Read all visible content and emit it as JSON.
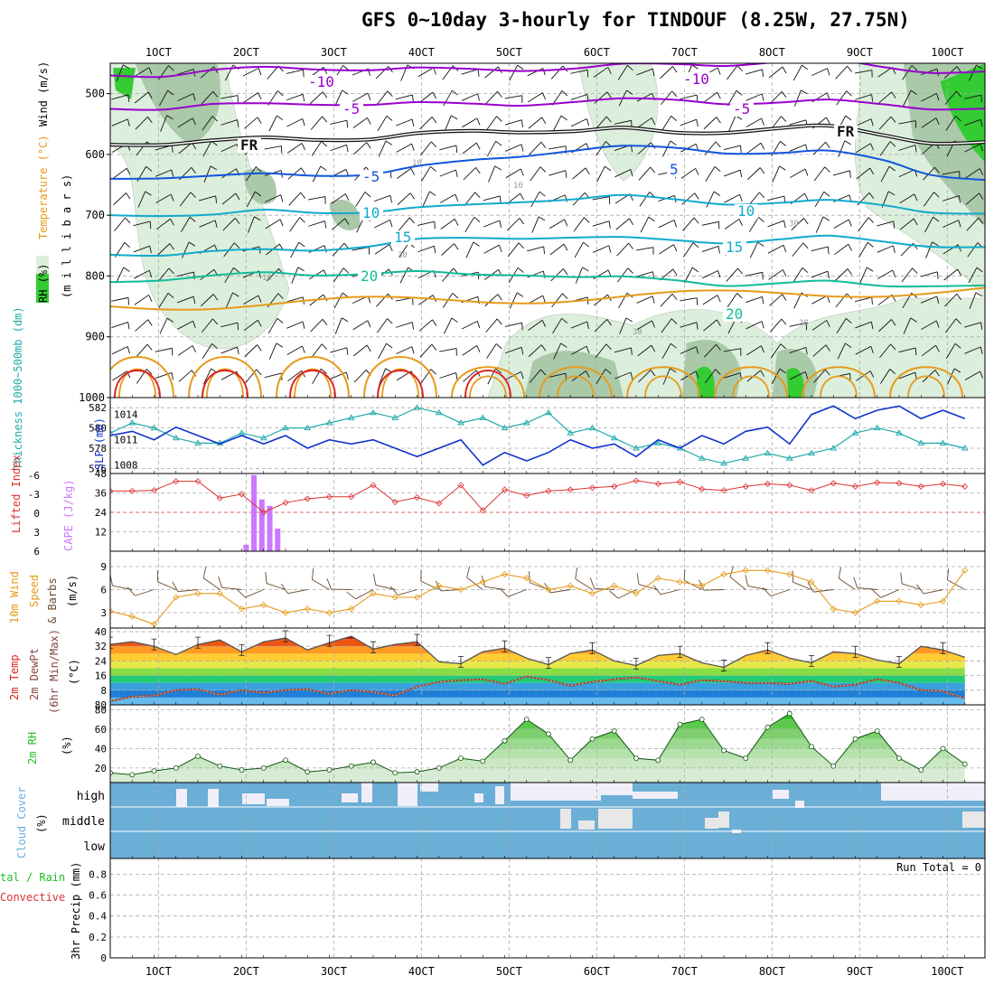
{
  "title": "GFS 0~10day 3-hourly for TINDOUF (8.25W, 27.75N)",
  "colors": {
    "rh_shade_light": "#dcefdc",
    "rh_shade_mid": "#a9c9a9",
    "rh_shade_green": "#33cc33",
    "temp_purple": "#9900cc",
    "temp_blue": "#1155dd",
    "temp_cyan": "#11aacc",
    "temp_teal": "#11bb99",
    "temp_orange": "#e69a1a",
    "temp_red": "#dd2222",
    "slp": "#1133cc",
    "thickness": "#22aaaa",
    "lifted_index": "#dd3333",
    "cape": "#cc77ff",
    "wind_speed": "#e69a1a",
    "dewpoint": "#884444",
    "rh2m": "#22bb22",
    "cloud": "#6baed6",
    "cloud_light": "#f0eef8"
  },
  "chart_data": [
    {
      "type": "line",
      "name_panel": "upper-air",
      "x_ticks": [
        "1OCT",
        "2OCT",
        "3OCT",
        "4OCT",
        "5OCT",
        "6OCT",
        "7OCT",
        "8OCT",
        "9OCT",
        "10OCT"
      ],
      "ylabel": "(m i l l i b a r s)",
      "ylabel_parts": [
        "RH (%)",
        "Temperature (°C)",
        "Wind (m/s)"
      ],
      "y_ticks": [
        500,
        600,
        700,
        800,
        900,
        1000
      ],
      "ylim": [
        450,
        1000
      ],
      "isotherm_labels": [
        "-10",
        "-5",
        "FR",
        "-5",
        "10",
        "15",
        "20",
        "-10",
        "-5",
        "FR",
        "5",
        "10",
        "15",
        "20"
      ],
      "rh_labels": [
        "10",
        "10",
        "30",
        "30",
        "10",
        "30",
        "30"
      ],
      "isotherms": [
        {
          "value": -10,
          "color": "purple",
          "p": [
            470,
            468,
            462,
            460,
            458,
            458,
            460,
            462,
            459,
            457,
            455,
            452,
            450,
            448,
            447,
            455,
            462,
            466
          ]
        },
        {
          "value": -5,
          "color": "purple",
          "p": [
            525,
            522,
            518,
            520,
            516,
            515,
            517,
            519,
            516,
            512,
            512,
            511,
            513,
            515,
            514,
            516,
            522,
            527
          ]
        },
        {
          "value": 0,
          "color": "black",
          "p": [
            584,
            580,
            578,
            576,
            574,
            572,
            568,
            564,
            560,
            560,
            560,
            565,
            560,
            557,
            557,
            567,
            578,
            582
          ]
        },
        {
          "value": 5,
          "color": "blue",
          "p": [
            640,
            635,
            636,
            635,
            633,
            630,
            622,
            612,
            600,
            592,
            590,
            590,
            594,
            598,
            598,
            608,
            630,
            645
          ]
        },
        {
          "value": 10,
          "color": "cyan",
          "p": [
            700,
            697,
            700,
            695,
            694,
            692,
            690,
            685,
            675,
            672,
            671,
            675,
            678,
            680,
            679,
            682,
            692,
            700
          ]
        },
        {
          "value": 15,
          "color": "cyan",
          "p": [
            765,
            762,
            760,
            760,
            756,
            748,
            742,
            740,
            735,
            735,
            740,
            742,
            742,
            740,
            738,
            742,
            748,
            755
          ]
        },
        {
          "value": 20,
          "color": "teal",
          "p": [
            810,
            803,
            800,
            798,
            797,
            793,
            795,
            800,
            795,
            800,
            805,
            808,
            812,
            812,
            812,
            815,
            813,
            818
          ]
        }
      ]
    },
    {
      "type": "line",
      "name_panel": "slp-thickness",
      "x": [
        0,
        0.25,
        0.5,
        0.75,
        1,
        1.25,
        1.5,
        1.75,
        2,
        2.25,
        2.5,
        2.75,
        3,
        3.25,
        3.5,
        3.75,
        4,
        4.25,
        4.5,
        4.75,
        5,
        5.25,
        5.5,
        5.75,
        6,
        6.25,
        6.5,
        6.75,
        7,
        7.25,
        7.5,
        7.75,
        8,
        8.25,
        8.5,
        8.75,
        9,
        9.25,
        9.5,
        9.75
      ],
      "series": [
        {
          "name": "SLP (mb)",
          "axis": "right",
          "values": [
            1011.5,
            1012,
            1011,
            1012.5,
            1011.5,
            1010.5,
            1011.5,
            1010.5,
            1011.5,
            1010,
            1011,
            1010.5,
            1011,
            1010,
            1009,
            1010,
            1011,
            1008,
            1009.5,
            1008.5,
            1009.5,
            1011,
            1010,
            1010.5,
            1009,
            1011,
            1010,
            1011.5,
            1010.5,
            1012,
            1012.5,
            1010.5,
            1014,
            1015,
            1013.5,
            1014.5,
            1015,
            1013.5,
            1014.5,
            1013.5
          ]
        },
        {
          "name": "Thickness 1000~500mb (dm)",
          "axis": "left",
          "values": [
            579.5,
            580.5,
            580,
            579,
            578.5,
            578.5,
            579.5,
            579,
            580,
            580,
            580.5,
            581,
            581.5,
            581,
            582,
            581.5,
            580.5,
            581,
            580,
            580.5,
            581.5,
            579.5,
            580,
            579,
            578,
            578.5,
            578,
            577,
            576.5,
            577,
            577.5,
            577,
            577.5,
            578,
            579.5,
            580,
            579.5,
            578.5,
            578.5,
            578
          ]
        }
      ],
      "y_ticks_left": [
        576,
        578,
        580,
        582
      ],
      "y_ticks_right": [
        1008,
        1011,
        1014
      ]
    },
    {
      "type": "bar",
      "name_panel": "cape-li",
      "li_ticks": [
        "6",
        "3",
        "0",
        "-3",
        "-6"
      ],
      "cape_ticks": [
        12,
        24,
        36,
        48
      ],
      "cape_bars": [
        {
          "day": 1.55,
          "value": 4
        },
        {
          "day": 1.64,
          "value": 47
        },
        {
          "day": 1.73,
          "value": 32
        },
        {
          "day": 1.82,
          "value": 28
        },
        {
          "day": 1.91,
          "value": 14
        }
      ],
      "lifted_index": [
        -3.3,
        -3.3,
        -3.4,
        -4.8,
        -4.8,
        -2.2,
        -2.8,
        0.0,
        -1.5,
        -2.1,
        -2.4,
        -2.4,
        -4.2,
        -1.6,
        -2.3,
        -1.4,
        -4.2,
        -0.3,
        -3.5,
        -2.6,
        -3.3,
        -3.5,
        -3.8,
        -4.0,
        -4.9,
        -4.4,
        -4.7,
        -3.6,
        -3.4,
        -4.0,
        -4.4,
        -4.2,
        -3.4,
        -4.5,
        -4.0,
        -4.6,
        -4.5,
        -4.0,
        -4.4,
        -4.0
      ]
    },
    {
      "type": "line",
      "name_panel": "wind10m",
      "y_ticks": [
        3,
        6,
        9
      ],
      "series": [
        {
          "name": "10m Wind Speed",
          "values": [
            3.2,
            2.5,
            1.5,
            5.0,
            5.5,
            5.5,
            3.5,
            4.0,
            3.0,
            3.5,
            3.0,
            3.5,
            5.5,
            5.0,
            5.0,
            6.5,
            6.0,
            7.0,
            8.0,
            7.5,
            6.0,
            6.5,
            5.5,
            6.5,
            5.5,
            7.5,
            7.0,
            6.5,
            8.0,
            8.5,
            8.5,
            8.0,
            7.0,
            3.5,
            3.0,
            4.5,
            4.5,
            4.0,
            4.5,
            8.5
          ]
        }
      ]
    },
    {
      "type": "area",
      "name_panel": "temp2m",
      "y_ticks": [
        8,
        16,
        24,
        32,
        40
      ],
      "series": [
        {
          "name": "2m Temp",
          "values": [
            33.0,
            34.5,
            32.0,
            27.5,
            33.0,
            35.5,
            29.0,
            34.5,
            36.5,
            30.0,
            34.0,
            37.5,
            30.5,
            33.0,
            34.5,
            23.5,
            22.5,
            29.0,
            31.0,
            25.5,
            22.0,
            28.0,
            30.0,
            24.0,
            21.5,
            27.0,
            28.0,
            23.0,
            20.5,
            27.0,
            30.0,
            25.5,
            23.0,
            29.0,
            28.0,
            24.5,
            22.5,
            32.0,
            30.0,
            26.0
          ]
        },
        {
          "name": "2m DewPt",
          "values": [
            2.0,
            4.5,
            5.0,
            8.0,
            8.5,
            5.5,
            8.0,
            6.5,
            8.0,
            8.5,
            6.0,
            8.0,
            7.0,
            5.0,
            10.0,
            12.5,
            13.5,
            14.0,
            11.5,
            15.5,
            13.5,
            10.5,
            12.5,
            14.0,
            15.0,
            13.0,
            11.0,
            13.5,
            13.0,
            12.0,
            12.0,
            11.5,
            13.0,
            10.0,
            11.0,
            14.0,
            12.0,
            8.0,
            7.5,
            3.5
          ]
        }
      ]
    },
    {
      "type": "area",
      "name_panel": "rh2m",
      "y_ticks": [
        20,
        40,
        60,
        80
      ],
      "series": [
        {
          "name": "2m RH",
          "values": [
            15,
            13,
            17,
            20,
            32,
            22,
            18,
            20,
            28,
            16,
            18,
            22,
            26,
            15,
            16,
            20,
            30,
            27,
            48,
            70,
            55,
            28,
            50,
            58,
            30,
            28,
            65,
            70,
            38,
            30,
            62,
            76,
            42,
            22,
            50,
            58,
            30,
            18,
            40,
            24
          ]
        }
      ]
    },
    {
      "type": "bar",
      "name_panel": "cloud",
      "y_categories": [
        "high",
        "middle",
        "low"
      ]
    },
    {
      "type": "bar",
      "name_panel": "precip",
      "y_ticks": [
        "0",
        "0.2",
        "0.4",
        "0.6",
        "0.8"
      ],
      "run_total": "Run Total = 0"
    }
  ],
  "labels": {
    "rh_word": "RH (%)",
    "temperature_word": "Temperature (°C)",
    "wind_word": "Wind (m/s)",
    "millibars": "(m i l l i b a r s)",
    "thickness": "Thickness 1000~500mb (dm)",
    "slp": "SLP (mb)",
    "lifted_index": "Lifted Index",
    "cape": "CAPE (J/kg)",
    "wind10m": "10m Wind",
    "speed": "Speed",
    "barbs": "& Barbs",
    "ms": "(m/s)",
    "temp2m": "2m Temp",
    "dewpt": "2m DewPt",
    "minmax": "(6hr Min/Max)",
    "degc": "(°C)",
    "rh2m": "2m RH",
    "pct": "(%)",
    "cloud_cover": "Cloud Cover",
    "precip": "3hr Precip (mm)",
    "total_rain": "tal / Rain",
    "convective": "Convective"
  }
}
